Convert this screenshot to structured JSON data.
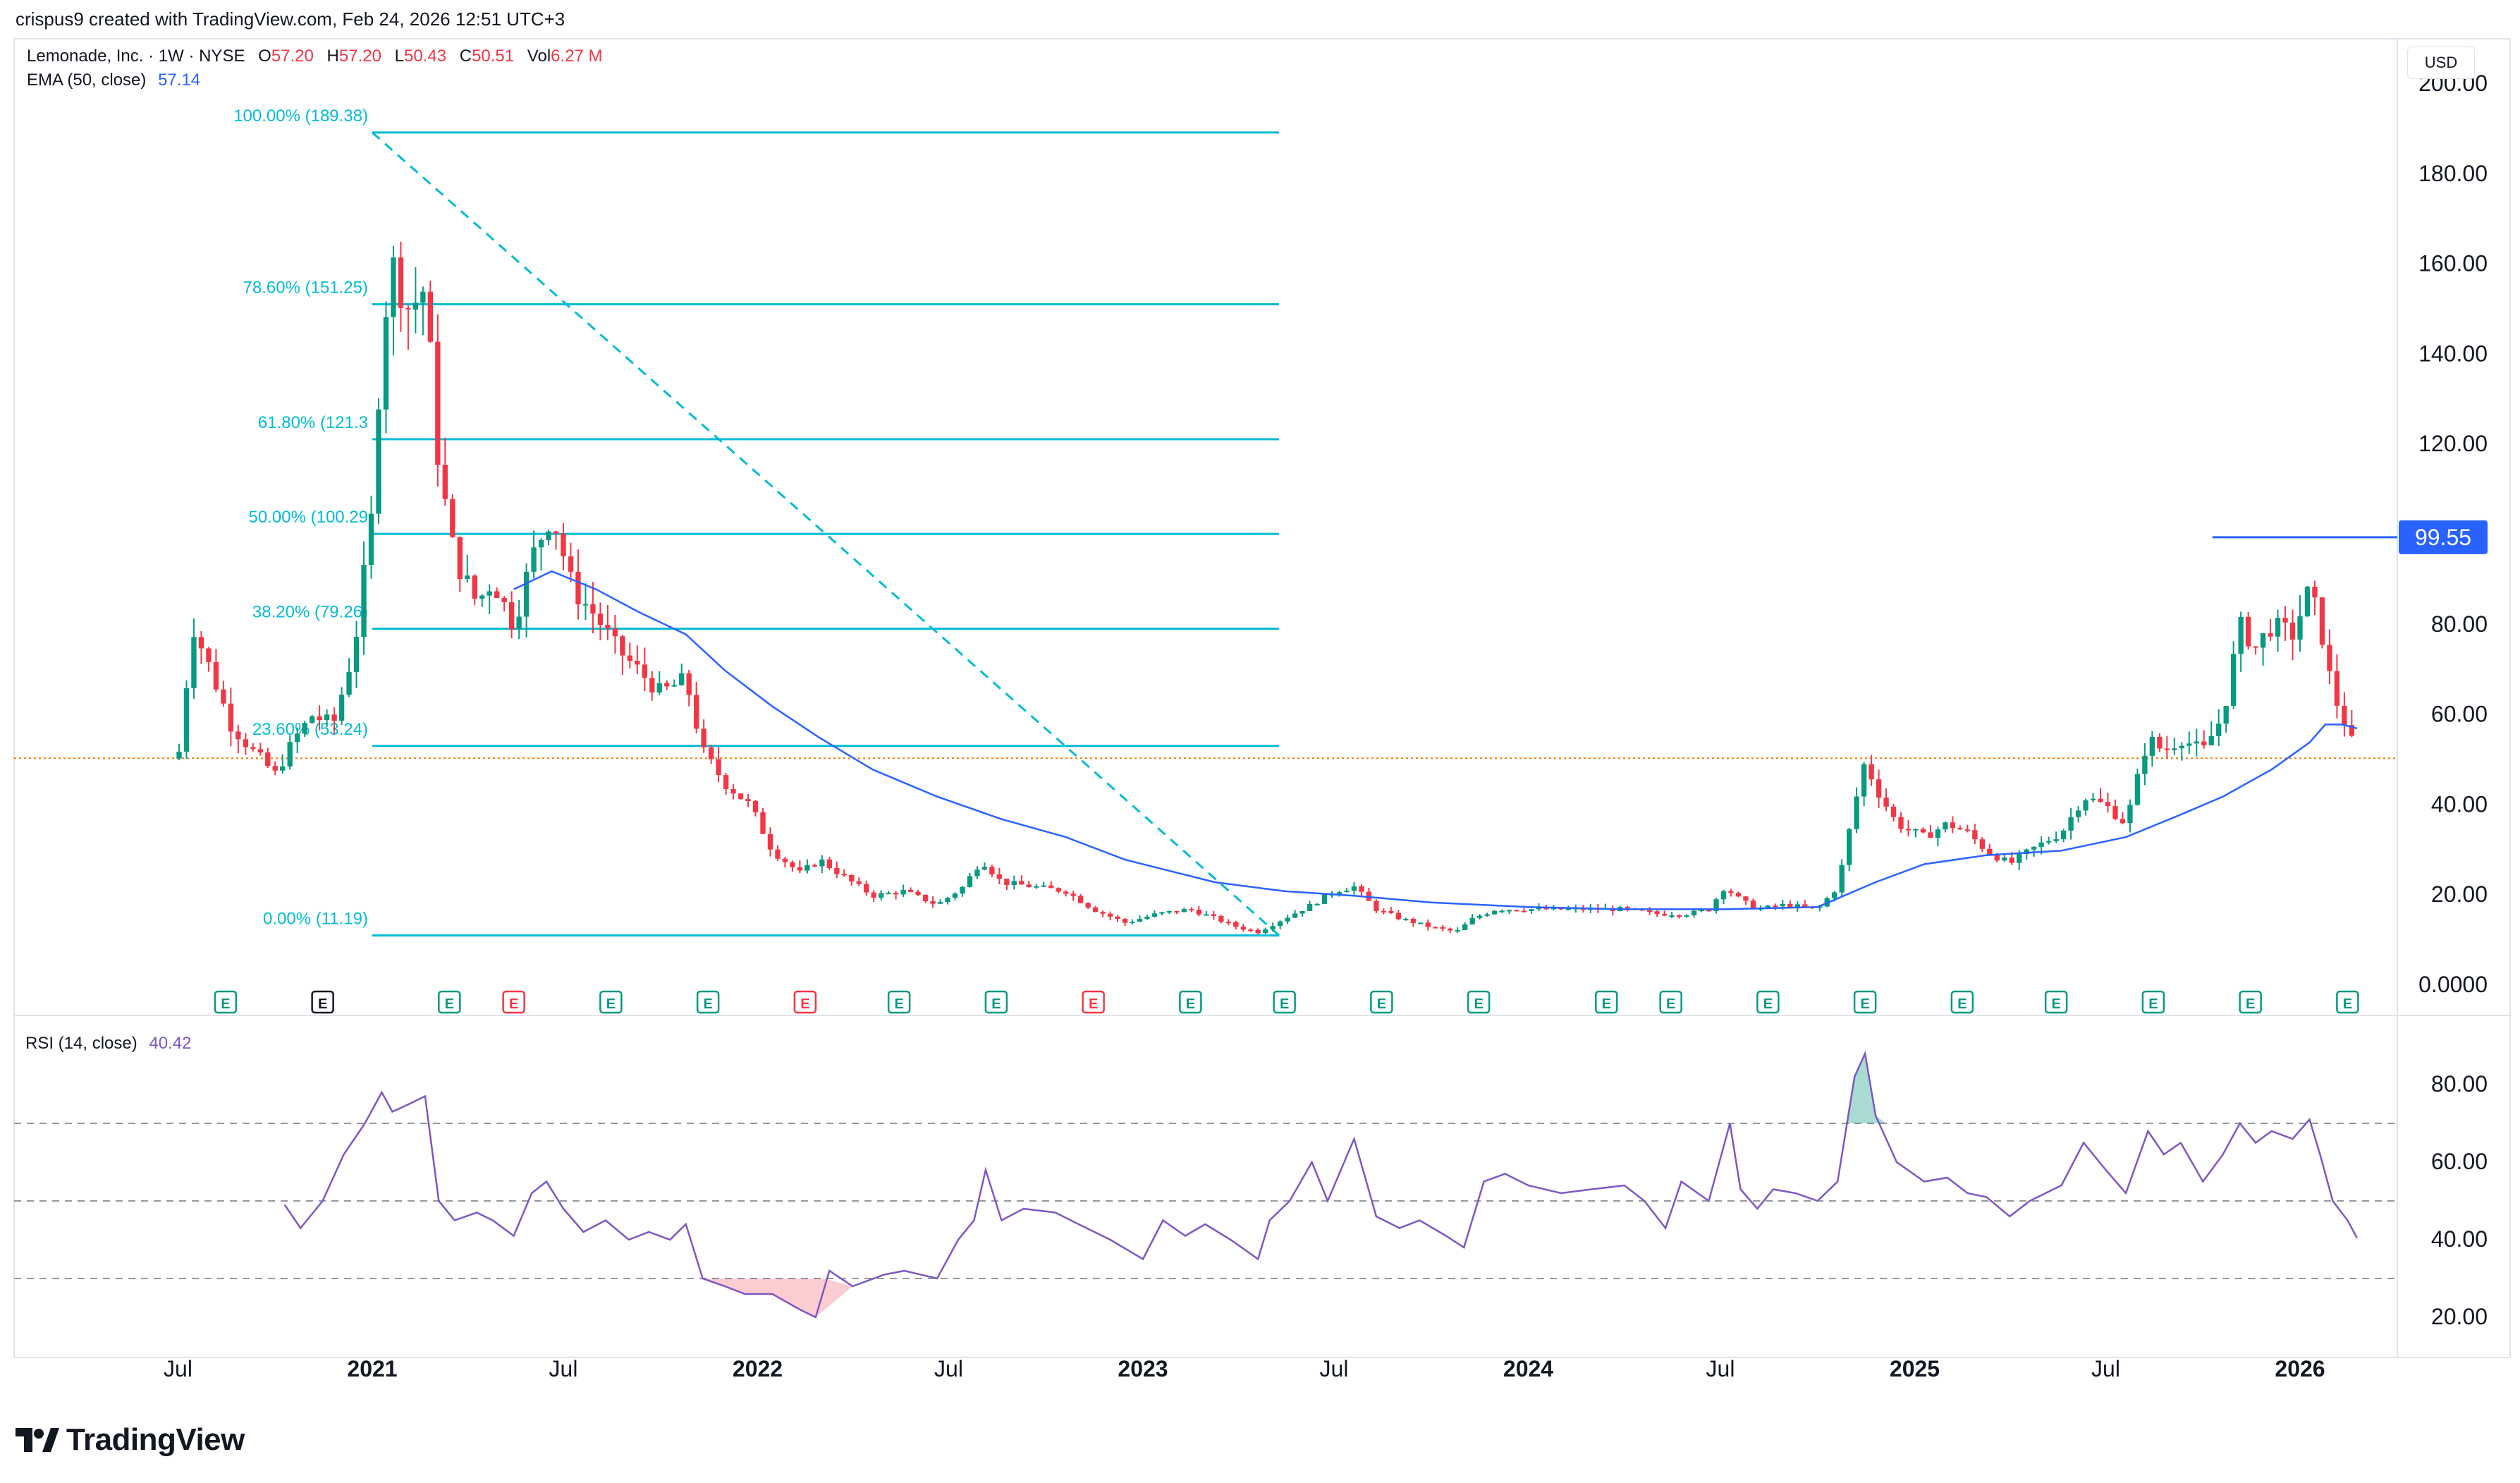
{
  "header": {
    "credit": "crispus9 created with TradingView.com, Feb 24, 2026 12:51 UTC+3",
    "symbol": "Lemonade, Inc. · 1W · NYSE",
    "o_label": "O",
    "o_value": "57.20",
    "h_label": "H",
    "h_value": "57.20",
    "l_label": "L",
    "l_value": "50.43",
    "c_label": "C",
    "c_value": "50.51",
    "vol_label": "Vol",
    "vol_value": "6.27 M",
    "ema_label": "EMA (50, close)",
    "ema_value": "57.14",
    "rsi_label": "RSI (14, close)",
    "rsi_value": "40.42",
    "currency": "USD"
  },
  "brand": {
    "name": "TradingView"
  },
  "colors": {
    "up": "#089981",
    "down": "#f23645",
    "ema": "#2962ff",
    "fib": "#00bcd4",
    "rsi": "#7e57c2",
    "price_line": "#f57c00",
    "marker_blue": "#2962ff"
  },
  "chart_data": [
    {
      "type": "candlestick",
      "title": "",
      "y_axis_ticks": [
        "0.0000",
        "20.00",
        "40.00",
        "60.00",
        "80.00",
        "120.00",
        "140.00",
        "160.00",
        "180.00",
        "200.00"
      ],
      "ylim": [
        0,
        200
      ],
      "x_axis_ticks": [
        "Jul",
        "2021",
        "Jul",
        "2022",
        "Jul",
        "2023",
        "Jul",
        "2024",
        "Jul",
        "2025",
        "Jul",
        "2026"
      ],
      "last_close": 50.51,
      "price_marker": "99.55",
      "fibonacci": [
        {
          "label": "100.00% (189.38)",
          "value": 189.38
        },
        {
          "label": "78.60% (151.25)",
          "value": 151.25
        },
        {
          "label": "61.80% (121.3",
          "value": 121.3
        },
        {
          "label": "50.00% (100.29",
          "value": 100.29
        },
        {
          "label": "38.20% (79.26)",
          "value": 79.26
        },
        {
          "label": "23.60% (53.24)",
          "value": 53.24
        },
        {
          "label": "0.00% (11.19)",
          "value": 11.19
        }
      ],
      "earnings_markers": [
        {
          "date": "2020-08",
          "type": "up"
        },
        {
          "date": "2020-11",
          "type": "neutral"
        },
        {
          "date": "2021-03",
          "type": "up"
        },
        {
          "date": "2021-05",
          "type": "down"
        },
        {
          "date": "2021-08",
          "type": "up"
        },
        {
          "date": "2021-11",
          "type": "up"
        },
        {
          "date": "2022-02",
          "type": "down"
        },
        {
          "date": "2022-05",
          "type": "up"
        },
        {
          "date": "2022-08",
          "type": "up"
        },
        {
          "date": "2022-11",
          "type": "down"
        },
        {
          "date": "2023-02",
          "type": "up"
        },
        {
          "date": "2023-05",
          "type": "up"
        },
        {
          "date": "2023-08",
          "type": "up"
        },
        {
          "date": "2023-11",
          "type": "up"
        },
        {
          "date": "2024-03",
          "type": "up"
        },
        {
          "date": "2024-05",
          "type": "up"
        },
        {
          "date": "2024-08",
          "type": "up"
        },
        {
          "date": "2024-11",
          "type": "up"
        },
        {
          "date": "2025-02",
          "type": "up"
        },
        {
          "date": "2025-05",
          "type": "up"
        },
        {
          "date": "2025-08",
          "type": "up"
        },
        {
          "date": "2025-11",
          "type": "up"
        },
        {
          "date": "2026-02",
          "type": "up"
        }
      ],
      "price_path": [
        [
          "2020-07-02",
          52
        ],
        [
          "2020-07-15",
          80
        ],
        [
          "2020-08-01",
          70
        ],
        [
          "2020-08-20",
          58
        ],
        [
          "2020-09-10",
          52
        ],
        [
          "2020-10-01",
          47
        ],
        [
          "2020-10-20",
          55
        ],
        [
          "2020-11-05",
          60
        ],
        [
          "2020-11-25",
          58
        ],
        [
          "2020-12-15",
          75
        ],
        [
          "2021-01-01",
          105
        ],
        [
          "2021-01-10",
          145
        ],
        [
          "2021-01-20",
          160
        ],
        [
          "2021-02-05",
          150
        ],
        [
          "2021-02-20",
          155
        ],
        [
          "2021-03-05",
          115
        ],
        [
          "2021-03-20",
          95
        ],
        [
          "2021-04-10",
          85
        ],
        [
          "2021-04-25",
          90
        ],
        [
          "2021-05-15",
          80
        ],
        [
          "2021-06-01",
          95
        ],
        [
          "2021-06-20",
          105
        ],
        [
          "2021-07-10",
          88
        ],
        [
          "2021-08-01",
          82
        ],
        [
          "2021-08-20",
          75
        ],
        [
          "2021-09-10",
          70
        ],
        [
          "2021-10-01",
          65
        ],
        [
          "2021-10-25",
          68
        ],
        [
          "2021-11-10",
          52
        ],
        [
          "2021-12-01",
          45
        ],
        [
          "2021-12-25",
          40
        ],
        [
          "2022-01-15",
          30
        ],
        [
          "2022-02-10",
          25
        ],
        [
          "2022-03-01",
          28
        ],
        [
          "2022-03-25",
          24
        ],
        [
          "2022-04-20",
          20
        ],
        [
          "2022-05-20",
          21
        ],
        [
          "2022-06-20",
          18
        ],
        [
          "2022-07-15",
          22
        ],
        [
          "2022-08-01",
          28
        ],
        [
          "2022-08-20",
          23
        ],
        [
          "2022-09-20",
          22
        ],
        [
          "2022-10-20",
          21
        ],
        [
          "2022-11-15",
          17
        ],
        [
          "2022-12-15",
          14
        ],
        [
          "2023-01-15",
          16
        ],
        [
          "2023-02-15",
          17
        ],
        [
          "2023-03-10",
          15
        ],
        [
          "2023-04-01",
          13
        ],
        [
          "2023-04-20",
          12
        ],
        [
          "2023-05-15",
          15
        ],
        [
          "2023-06-10",
          18
        ],
        [
          "2023-07-01",
          21
        ],
        [
          "2023-07-20",
          22
        ],
        [
          "2023-08-10",
          17
        ],
        [
          "2023-09-01",
          15
        ],
        [
          "2023-10-01",
          13
        ],
        [
          "2023-10-25",
          12
        ],
        [
          "2023-11-10",
          15
        ],
        [
          "2023-12-01",
          17
        ],
        [
          "2024-01-01",
          17
        ],
        [
          "2024-02-01",
          17
        ],
        [
          "2024-03-01",
          17
        ],
        [
          "2024-04-01",
          17
        ],
        [
          "2024-05-01",
          16
        ],
        [
          "2024-06-01",
          16
        ],
        [
          "2024-06-20",
          17
        ],
        [
          "2024-07-05",
          22
        ],
        [
          "2024-07-20",
          19
        ],
        [
          "2024-08-05",
          17
        ],
        [
          "2024-09-01",
          18
        ],
        [
          "2024-10-01",
          17
        ],
        [
          "2024-10-20",
          22
        ],
        [
          "2024-11-05",
          40
        ],
        [
          "2024-11-15",
          50
        ],
        [
          "2024-11-25",
          44
        ],
        [
          "2024-12-15",
          36
        ],
        [
          "2025-01-10",
          33
        ],
        [
          "2025-02-01",
          36
        ],
        [
          "2025-02-20",
          34
        ],
        [
          "2025-03-10",
          30
        ],
        [
          "2025-04-01",
          27
        ],
        [
          "2025-04-20",
          30
        ],
        [
          "2025-05-20",
          34
        ],
        [
          "2025-06-10",
          42
        ],
        [
          "2025-07-01",
          40
        ],
        [
          "2025-07-20",
          36
        ],
        [
          "2025-08-10",
          55
        ],
        [
          "2025-08-25",
          52
        ],
        [
          "2025-09-10",
          55
        ],
        [
          "2025-10-01",
          52
        ],
        [
          "2025-10-20",
          60
        ],
        [
          "2025-11-05",
          80
        ],
        [
          "2025-11-20",
          75
        ],
        [
          "2025-12-05",
          80
        ],
        [
          "2025-12-25",
          78
        ],
        [
          "2026-01-10",
          88
        ],
        [
          "2026-01-20",
          80
        ],
        [
          "2026-02-01",
          65
        ],
        [
          "2026-02-15",
          57
        ],
        [
          "2026-02-24",
          50.51
        ]
      ],
      "ema_path": [
        [
          "2021-05-15",
          88
        ],
        [
          "2021-06-20",
          92
        ],
        [
          "2021-08-01",
          88
        ],
        [
          "2021-09-10",
          83
        ],
        [
          "2021-10-25",
          78
        ],
        [
          "2021-12-01",
          70
        ],
        [
          "2022-01-15",
          62
        ],
        [
          "2022-03-01",
          55
        ],
        [
          "2022-04-20",
          48
        ],
        [
          "2022-06-20",
          42
        ],
        [
          "2022-08-20",
          37
        ],
        [
          "2022-10-20",
          33
        ],
        [
          "2022-12-15",
          28
        ],
        [
          "2023-03-10",
          23
        ],
        [
          "2023-05-15",
          21
        ],
        [
          "2023-07-20",
          20
        ],
        [
          "2023-10-01",
          18.5
        ],
        [
          "2024-01-01",
          17.5
        ],
        [
          "2024-04-01",
          17
        ],
        [
          "2024-07-05",
          17
        ],
        [
          "2024-10-01",
          17.5
        ],
        [
          "2024-11-25",
          23
        ],
        [
          "2025-01-10",
          27
        ],
        [
          "2025-03-10",
          29
        ],
        [
          "2025-05-20",
          30
        ],
        [
          "2025-07-20",
          33
        ],
        [
          "2025-09-10",
          38
        ],
        [
          "2025-10-20",
          42
        ],
        [
          "2025-12-05",
          48
        ],
        [
          "2026-01-10",
          54
        ],
        [
          "2026-01-25",
          58
        ],
        [
          "2026-02-10",
          58
        ],
        [
          "2026-02-24",
          57.14
        ]
      ]
    },
    {
      "type": "line",
      "title": "",
      "y_axis_ticks": [
        "20.00",
        "40.00",
        "60.00",
        "80.00"
      ],
      "ylim": [
        10,
        92
      ],
      "levels": [
        70,
        50,
        30
      ],
      "series": [
        {
          "values": [
            [
              "2020-10-10",
              49
            ],
            [
              "2020-10-25",
              43
            ],
            [
              "2020-11-15",
              50
            ],
            [
              "2020-12-05",
              62
            ],
            [
              "2020-12-25",
              70
            ],
            [
              "2021-01-10",
              78
            ],
            [
              "2021-01-20",
              73
            ],
            [
              "2021-02-05",
              75
            ],
            [
              "2021-02-20",
              77
            ],
            [
              "2021-03-05",
              50
            ],
            [
              "2021-03-20",
              45
            ],
            [
              "2021-04-10",
              47
            ],
            [
              "2021-04-25",
              45
            ],
            [
              "2021-05-15",
              41
            ],
            [
              "2021-06-01",
              52
            ],
            [
              "2021-06-15",
              55
            ],
            [
              "2021-07-01",
              48
            ],
            [
              "2021-07-20",
              42
            ],
            [
              "2021-08-10",
              45
            ],
            [
              "2021-09-01",
              40
            ],
            [
              "2021-09-20",
              42
            ],
            [
              "2021-10-10",
              40
            ],
            [
              "2021-10-25",
              44
            ],
            [
              "2021-11-10",
              30
            ],
            [
              "2021-12-01",
              28
            ],
            [
              "2021-12-20",
              26
            ],
            [
              "2022-01-15",
              26
            ],
            [
              "2022-02-10",
              22
            ],
            [
              "2022-02-25",
              20
            ],
            [
              "2022-03-10",
              32
            ],
            [
              "2022-04-01",
              28
            ],
            [
              "2022-05-01",
              31
            ],
            [
              "2022-05-20",
              32
            ],
            [
              "2022-06-20",
              30
            ],
            [
              "2022-07-10",
              40
            ],
            [
              "2022-07-25",
              45
            ],
            [
              "2022-08-05",
              58
            ],
            [
              "2022-08-20",
              45
            ],
            [
              "2022-09-10",
              48
            ],
            [
              "2022-10-10",
              47
            ],
            [
              "2022-11-01",
              44
            ],
            [
              "2022-12-01",
              40
            ],
            [
              "2023-01-01",
              35
            ],
            [
              "2023-01-20",
              45
            ],
            [
              "2023-02-10",
              41
            ],
            [
              "2023-03-01",
              44
            ],
            [
              "2023-03-25",
              40
            ],
            [
              "2023-04-20",
              35
            ],
            [
              "2023-05-01",
              45
            ],
            [
              "2023-05-20",
              50
            ],
            [
              "2023-06-10",
              60
            ],
            [
              "2023-06-25",
              50
            ],
            [
              "2023-07-20",
              66
            ],
            [
              "2023-08-10",
              46
            ],
            [
              "2023-09-01",
              43
            ],
            [
              "2023-09-20",
              45
            ],
            [
              "2023-10-15",
              41
            ],
            [
              "2023-11-01",
              38
            ],
            [
              "2023-11-20",
              55
            ],
            [
              "2023-12-10",
              57
            ],
            [
              "2024-01-01",
              54
            ],
            [
              "2024-02-01",
              52
            ],
            [
              "2024-03-01",
              53
            ],
            [
              "2024-04-01",
              54
            ],
            [
              "2024-04-20",
              50
            ],
            [
              "2024-05-10",
              43
            ],
            [
              "2024-05-25",
              55
            ],
            [
              "2024-06-20",
              50
            ],
            [
              "2024-07-10",
              70
            ],
            [
              "2024-07-20",
              53
            ],
            [
              "2024-08-05",
              48
            ],
            [
              "2024-08-20",
              53
            ],
            [
              "2024-09-10",
              52
            ],
            [
              "2024-10-01",
              50
            ],
            [
              "2024-10-20",
              55
            ],
            [
              "2024-11-05",
              82
            ],
            [
              "2024-11-15",
              88
            ],
            [
              "2024-11-25",
              72
            ],
            [
              "2024-12-15",
              60
            ],
            [
              "2025-01-10",
              55
            ],
            [
              "2025-02-01",
              56
            ],
            [
              "2025-02-20",
              52
            ],
            [
              "2025-03-10",
              51
            ],
            [
              "2025-04-01",
              46
            ],
            [
              "2025-04-20",
              50
            ],
            [
              "2025-05-20",
              54
            ],
            [
              "2025-06-10",
              65
            ],
            [
              "2025-07-01",
              58
            ],
            [
              "2025-07-20",
              52
            ],
            [
              "2025-08-10",
              68
            ],
            [
              "2025-08-25",
              62
            ],
            [
              "2025-09-10",
              65
            ],
            [
              "2025-10-01",
              55
            ],
            [
              "2025-10-20",
              62
            ],
            [
              "2025-11-05",
              70
            ],
            [
              "2025-11-20",
              65
            ],
            [
              "2025-12-05",
              68
            ],
            [
              "2025-12-25",
              66
            ],
            [
              "2026-01-10",
              71
            ],
            [
              "2026-01-20",
              62
            ],
            [
              "2026-02-01",
              50
            ],
            [
              "2026-02-15",
              45
            ],
            [
              "2026-02-24",
              40.42
            ]
          ]
        }
      ]
    }
  ]
}
